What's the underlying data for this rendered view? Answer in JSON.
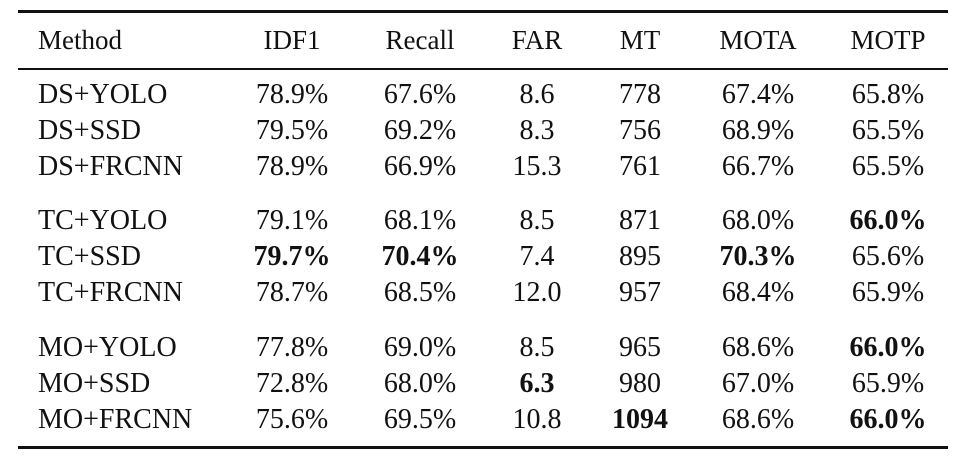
{
  "table": {
    "columns": [
      "Method",
      "IDF1",
      "Recall",
      "FAR",
      "MT",
      "MOTA",
      "MOTP"
    ],
    "groups": [
      [
        [
          "DS+YOLO",
          "78.9%",
          "67.6%",
          "8.6",
          "778",
          "67.4%",
          "65.8%"
        ],
        [
          "DS+SSD",
          "79.5%",
          "69.2%",
          "8.3",
          "756",
          "68.9%",
          "65.5%"
        ],
        [
          "DS+FRCNN",
          "78.9%",
          "66.9%",
          "15.3",
          "761",
          "66.7%",
          "65.5%"
        ]
      ],
      [
        [
          "TC+YOLO",
          "79.1%",
          "68.1%",
          "8.5",
          "871",
          "68.0%",
          "66.0%"
        ],
        [
          "TC+SSD",
          "79.7%",
          "70.4%",
          "7.4",
          "895",
          "70.3%",
          "65.6%"
        ],
        [
          "TC+FRCNN",
          "78.7%",
          "68.5%",
          "12.0",
          "957",
          "68.4%",
          "65.9%"
        ]
      ],
      [
        [
          "MO+YOLO",
          "77.8%",
          "69.0%",
          "8.5",
          "965",
          "68.6%",
          "66.0%"
        ],
        [
          "MO+SSD",
          "72.8%",
          "68.0%",
          "6.3",
          "980",
          "67.0%",
          "65.9%"
        ],
        [
          "MO+FRCNN",
          "75.6%",
          "69.5%",
          "10.8",
          "1094",
          "68.6%",
          "66.0%"
        ]
      ]
    ]
  }
}
